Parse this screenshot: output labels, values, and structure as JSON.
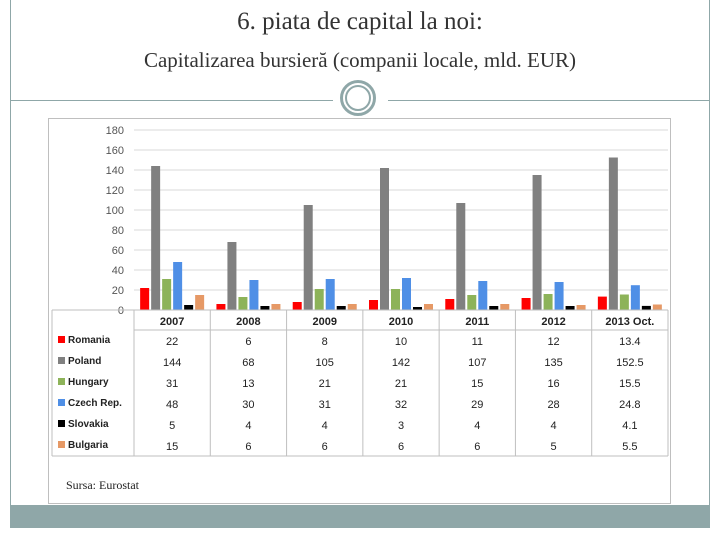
{
  "header": {
    "title": "6. piata de capital la noi:",
    "subtitle": "Capitalizarea bursieră (companii locale, mld. EUR)"
  },
  "source": "Sursa: Eurostat",
  "colors": {
    "Romania": "#ff0000",
    "Poland": "#808080",
    "Hungary": "#8db359",
    "Czech Rep.": "#4f8fe6",
    "Slovakia": "#000000",
    "Bulgaria": "#e69966"
  },
  "chart_data": {
    "type": "bar",
    "categories": [
      "2007",
      "2008",
      "2009",
      "2010",
      "2011",
      "2012",
      "2013 Oct."
    ],
    "ylim": [
      0,
      180
    ],
    "yticks": [
      "0",
      "20",
      "40",
      "60",
      "80",
      "100",
      "120",
      "140",
      "160",
      "180"
    ],
    "grid": true,
    "legend": "data-table",
    "series": [
      {
        "name": "Romania",
        "values": [
          22,
          6,
          8,
          10,
          11,
          12,
          13.4
        ],
        "labels": [
          "22",
          "6",
          "8",
          "10",
          "11",
          "12",
          "13.4"
        ]
      },
      {
        "name": "Poland",
        "values": [
          144,
          68,
          105,
          142,
          107,
          135,
          152.5
        ],
        "labels": [
          "144",
          "68",
          "105",
          "142",
          "107",
          "135",
          "152.5"
        ]
      },
      {
        "name": "Hungary",
        "values": [
          31,
          13,
          21,
          21,
          15,
          16,
          15.5
        ],
        "labels": [
          "31",
          "13",
          "21",
          "21",
          "15",
          "16",
          "15.5"
        ]
      },
      {
        "name": "Czech Rep.",
        "values": [
          48,
          30,
          31,
          32,
          29,
          28,
          24.8
        ],
        "labels": [
          "48",
          "30",
          "31",
          "32",
          "29",
          "28",
          "24.8"
        ]
      },
      {
        "name": "Slovakia",
        "values": [
          5,
          4,
          4,
          3,
          4,
          4,
          4.1
        ],
        "labels": [
          "5",
          "4",
          "4",
          "3",
          "4",
          "4",
          "4.1"
        ]
      },
      {
        "name": "Bulgaria",
        "values": [
          15,
          6,
          6,
          6,
          6,
          5,
          5.5
        ],
        "labels": [
          "15",
          "6",
          "6",
          "6",
          "6",
          "5",
          "5.5"
        ]
      }
    ]
  }
}
